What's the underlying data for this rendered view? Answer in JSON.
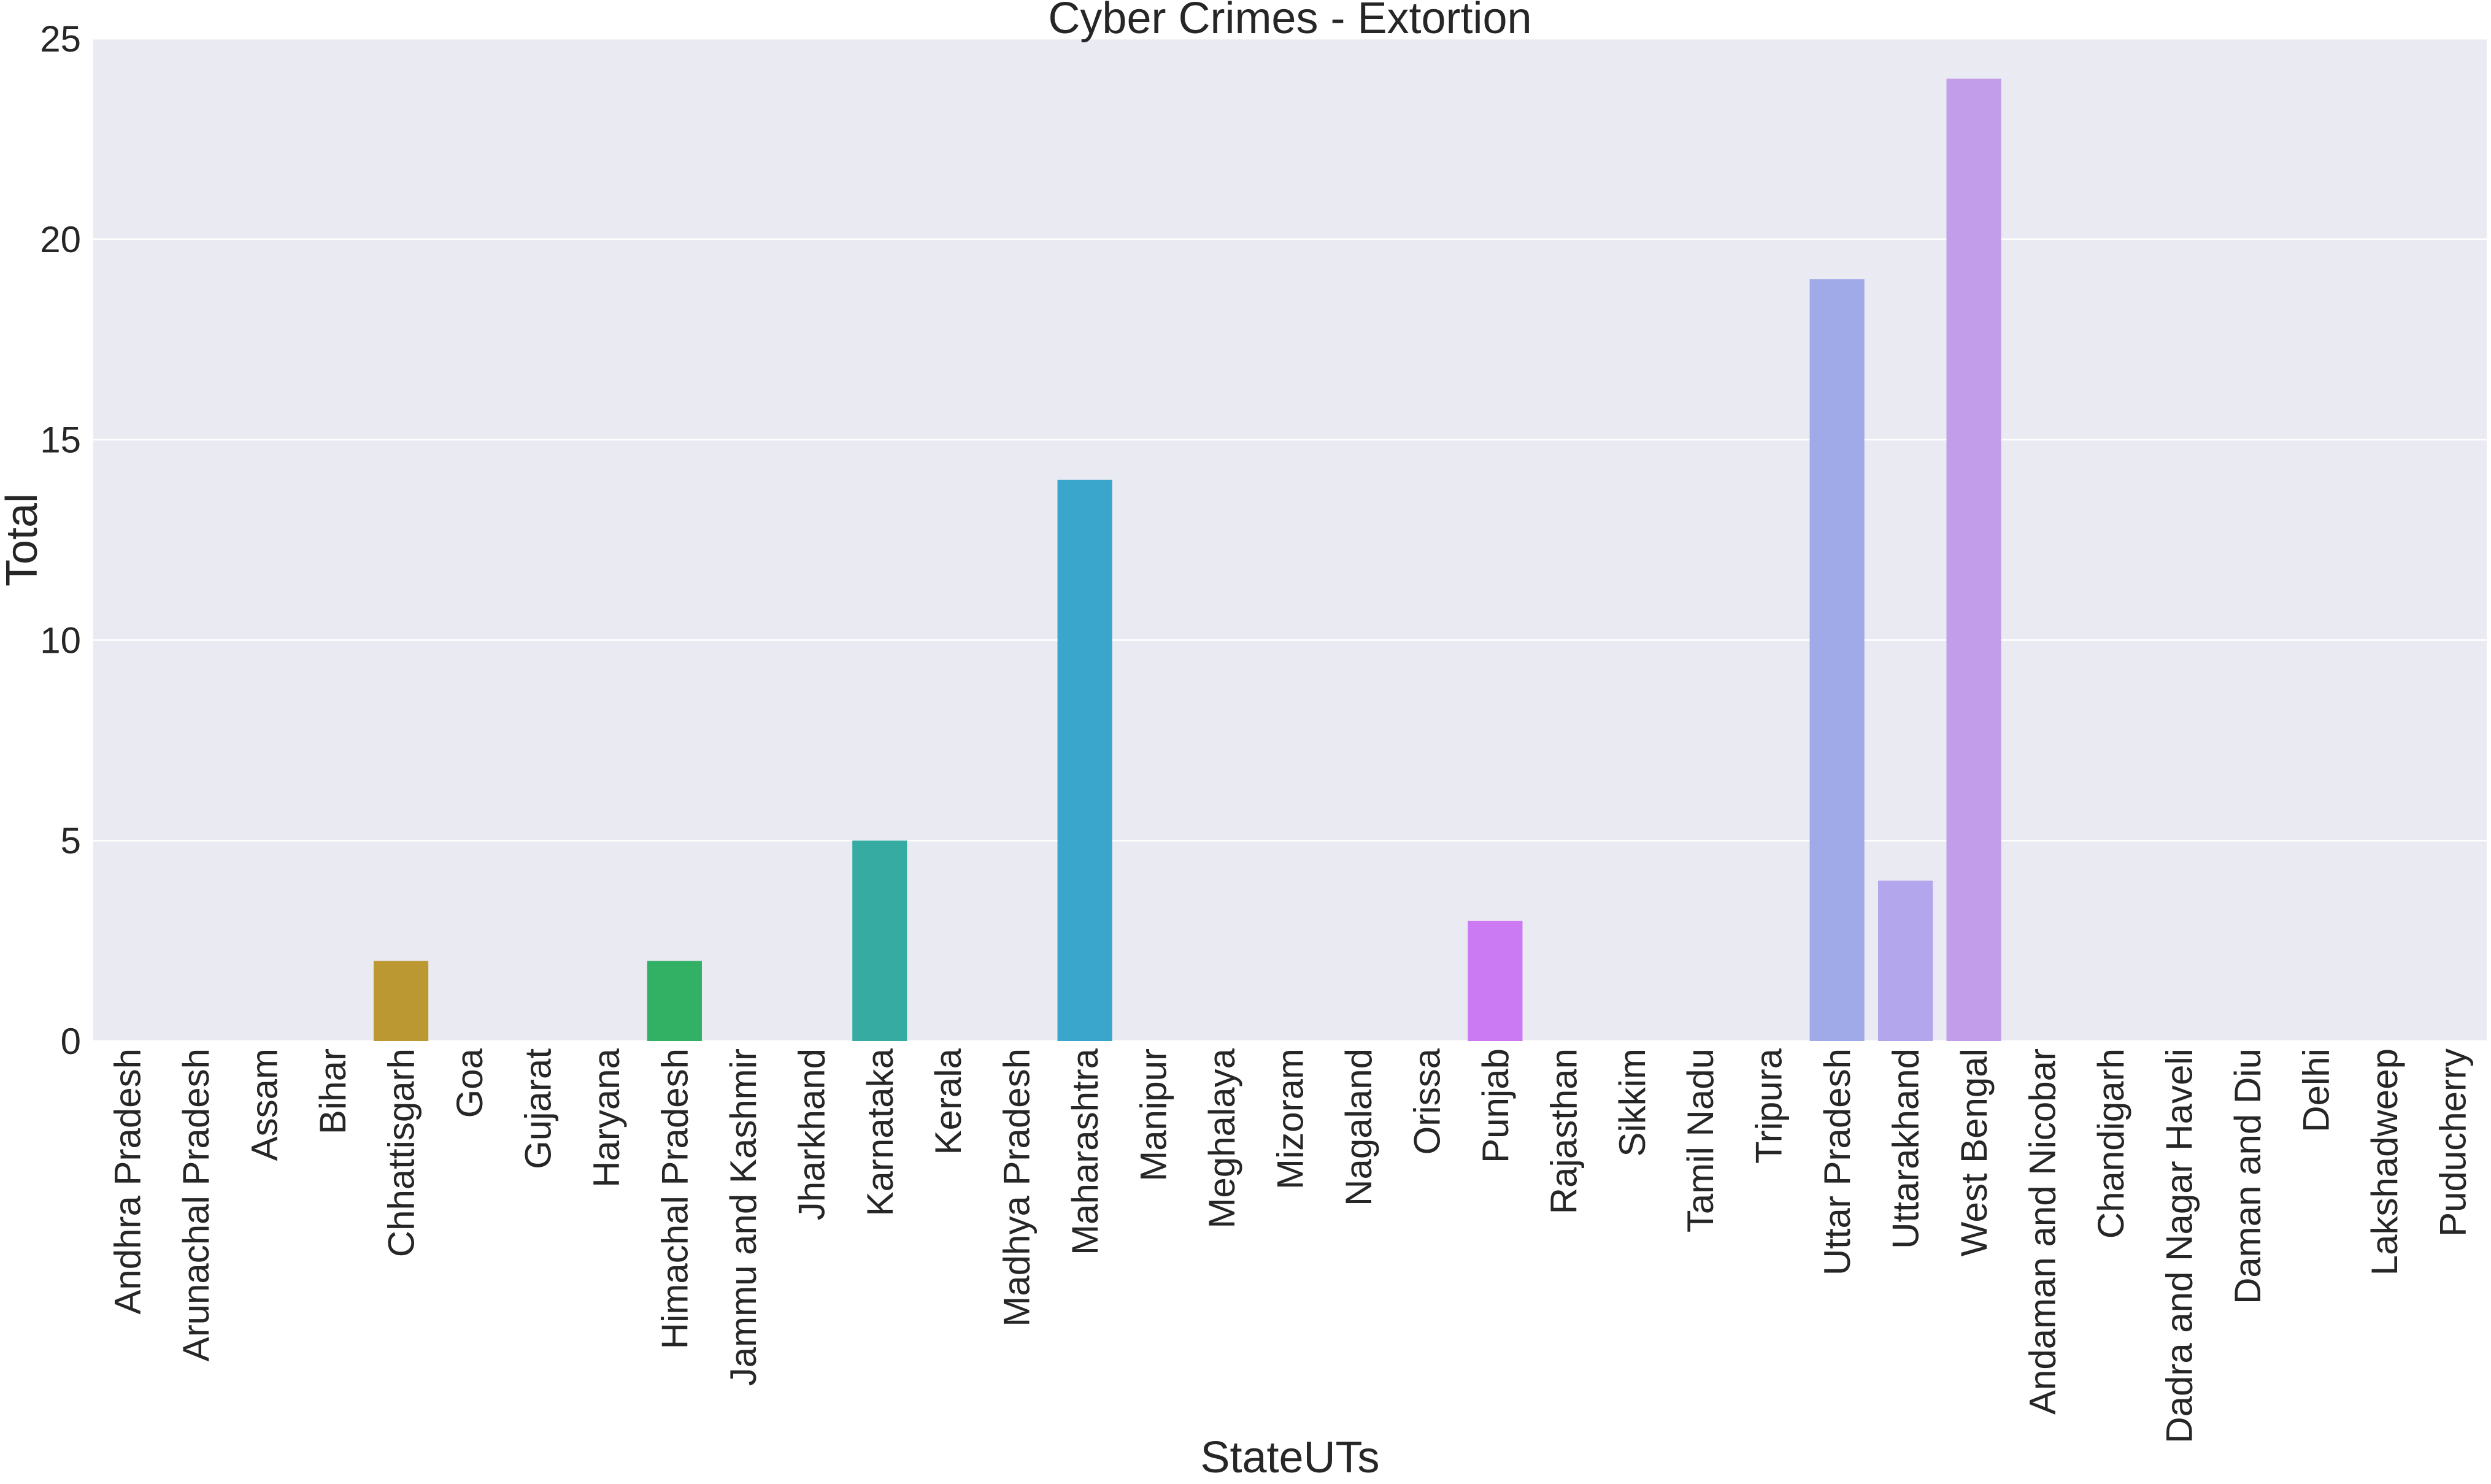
{
  "chart_data": {
    "type": "bar",
    "title": "Cyber Crimes - Extortion",
    "xlabel": "StateUTs",
    "ylabel": "Total",
    "ylim": [
      0,
      25
    ],
    "yticks": [
      "0",
      "5",
      "10",
      "15",
      "20",
      "25"
    ],
    "grid": true,
    "categories": [
      "Andhra Pradesh",
      "Arunachal Pradesh",
      "Assam",
      "Bihar",
      "Chhattisgarh",
      "Goa",
      "Gujarat",
      "Haryana",
      "Himachal Pradesh",
      "Jammu and Kashmir",
      "Jharkhand",
      "Karnataka",
      "Kerala",
      "Madhya Pradesh",
      "Maharashtra",
      "Manipur",
      "Meghalaya",
      "Mizoram",
      "Nagaland",
      "Orissa",
      "Punjab",
      "Rajasthan",
      "Sikkim",
      "Tamil Nadu",
      "Tripura",
      "Uttar Pradesh",
      "Uttarakhand",
      "West Bengal",
      "Andaman and Nicobar",
      "Chandigarh",
      "Dadra and Nagar Haveli",
      "Daman and Diu",
      "Delhi",
      "Lakshadweep",
      "Puducherry"
    ],
    "values": [
      0,
      0,
      0,
      0,
      2,
      0,
      0,
      0,
      2,
      0,
      0,
      5,
      0,
      0,
      14,
      0,
      0,
      0,
      0,
      0,
      3,
      0,
      0,
      0,
      0,
      19,
      4,
      24,
      0,
      0,
      0,
      0,
      0,
      0,
      0
    ],
    "colors": [
      "#f77189",
      "#f7754f",
      "#e68332",
      "#d08c32",
      "#bb9832",
      "#a69f32",
      "#8ca432",
      "#6aab32",
      "#32b165",
      "#34af84",
      "#35ad94",
      "#36aba2",
      "#37aaaf",
      "#38a9bd",
      "#3aa6cc",
      "#4aa3dd",
      "#6f9bf4",
      "#8f93f4",
      "#a18cf4",
      "#b482f4",
      "#cc79f4",
      "#e26ef0",
      "#f565de",
      "#f66bc5",
      "#f76fb0",
      "#a0aae9",
      "#b3a6ec",
      "#c29eea",
      "#f77189",
      "#f77189",
      "#f77189",
      "#f77189",
      "#f77189",
      "#f77189",
      "#f77189"
    ],
    "background": "#eaeaf2",
    "gridline_color": "#ffffff"
  }
}
